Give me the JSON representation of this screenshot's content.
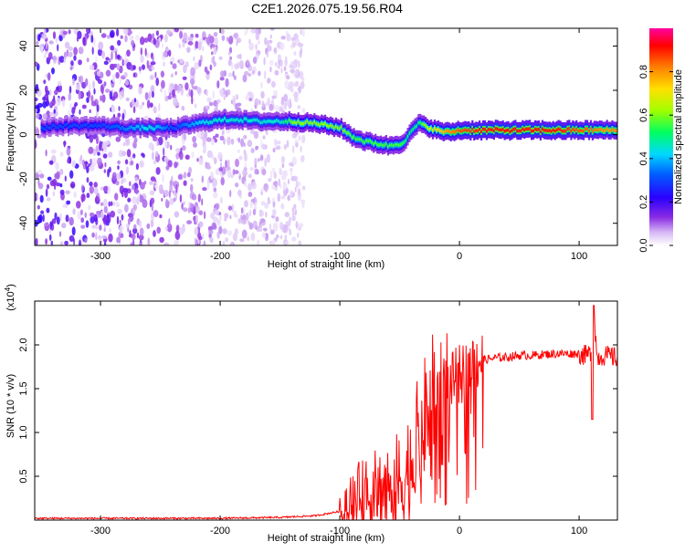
{
  "title": "C2E1.2026.075.19.56.R04",
  "chart_data": [
    {
      "type": "heatmap",
      "title": "C2E1.2026.075.19.56.R04",
      "xlabel": "Height of straight line (km)",
      "ylabel": "Frequency (Hz)",
      "xlim": [
        -355,
        132
      ],
      "ylim": [
        -50,
        48
      ],
      "xticks": [
        -300,
        -200,
        -100,
        0,
        100
      ],
      "yticks": [
        -40,
        -20,
        0,
        20,
        40
      ],
      "xtick_labels": [
        "-300",
        "-200",
        "-100",
        "0",
        "100"
      ],
      "ytick_labels": [
        "-40",
        "-20",
        "0",
        "20",
        "40"
      ],
      "colorbar": {
        "label": "Normalized spectral amplitude",
        "range": [
          0,
          1
        ],
        "ticks": [
          0.0,
          0.2,
          0.4,
          0.6,
          0.8
        ],
        "tick_labels": [
          "0.0",
          "0.2",
          "0.4",
          "0.6",
          "0.8"
        ],
        "colors": [
          "#ffffff",
          "#c8a8f0",
          "#8a2be2",
          "#2000ff",
          "#00d0ff",
          "#00ff60",
          "#c0ff00",
          "#ffa000",
          "#ff0000",
          "#ff00a0"
        ]
      },
      "ridge": {
        "x": [
          -350,
          -330,
          -300,
          -280,
          -260,
          -240,
          -210,
          -190,
          -170,
          -150,
          -140,
          -120,
          -100,
          -90,
          -80,
          -70,
          -60,
          -50,
          -45,
          -40,
          -35,
          -30,
          -20,
          -10,
          0,
          20,
          40,
          60,
          80,
          100,
          120,
          130
        ],
        "frequency": [
          3,
          4,
          4,
          3,
          3,
          3,
          6,
          7,
          6,
          6,
          6,
          5,
          3,
          -1,
          -3,
          -4,
          -5,
          -4,
          -2,
          2,
          5,
          4,
          2,
          1,
          2,
          2,
          2,
          2,
          2,
          2,
          2,
          2
        ],
        "amplitude": [
          0.3,
          0.3,
          0.3,
          0.35,
          0.45,
          0.3,
          0.45,
          0.45,
          0.45,
          0.45,
          0.6,
          0.6,
          0.6,
          0.55,
          0.55,
          0.55,
          0.55,
          0.55,
          0.5,
          0.5,
          0.5,
          0.6,
          0.7,
          0.8,
          0.85,
          0.9,
          0.9,
          0.9,
          0.9,
          0.85,
          0.8,
          0.8
        ]
      },
      "noise_region_x": [
        -355,
        -130
      ]
    },
    {
      "type": "line",
      "xlabel": "Height of straight line (km)",
      "ylabel": "SNR (10 * v/v)",
      "multiplier_label": "(x10",
      "multiplier_exponent": "4",
      "multiplier_close": ")",
      "xlim": [
        -355,
        132
      ],
      "ylim": [
        0,
        2.5
      ],
      "xticks": [
        -300,
        -200,
        -100,
        0,
        100
      ],
      "yticks": [
        0.5,
        1.0,
        1.5,
        2.0
      ],
      "xtick_labels": [
        "-300",
        "-200",
        "-100",
        "0",
        "100"
      ],
      "ytick_labels": [
        "0.5",
        "1.0",
        "1.5",
        "2.0"
      ],
      "color": "#ff0000",
      "series": [
        {
          "name": "SNR",
          "x": [
            -355,
            -300,
            -200,
            -150,
            -120,
            -100,
            -90,
            -80,
            -70,
            -60,
            -50,
            -45,
            -40,
            -35,
            -30,
            -25,
            -20,
            -15,
            -10,
            -5,
            0,
            5,
            10,
            15,
            20,
            30,
            40,
            50,
            60,
            70,
            80,
            90,
            100,
            105,
            110,
            112,
            115,
            120,
            125,
            132
          ],
          "y": [
            0.02,
            0.02,
            0.02,
            0.03,
            0.05,
            0.1,
            0.2,
            0.25,
            0.3,
            0.35,
            0.4,
            0.5,
            0.7,
            0.9,
            1.1,
            1.3,
            1.4,
            1.4,
            1.5,
            1.6,
            1.65,
            1.7,
            1.8,
            1.82,
            1.83,
            1.85,
            1.86,
            1.88,
            1.88,
            1.89,
            1.9,
            1.9,
            1.9,
            1.88,
            1.9,
            2.45,
            1.85,
            1.88,
            1.87,
            1.85
          ]
        }
      ]
    }
  ]
}
